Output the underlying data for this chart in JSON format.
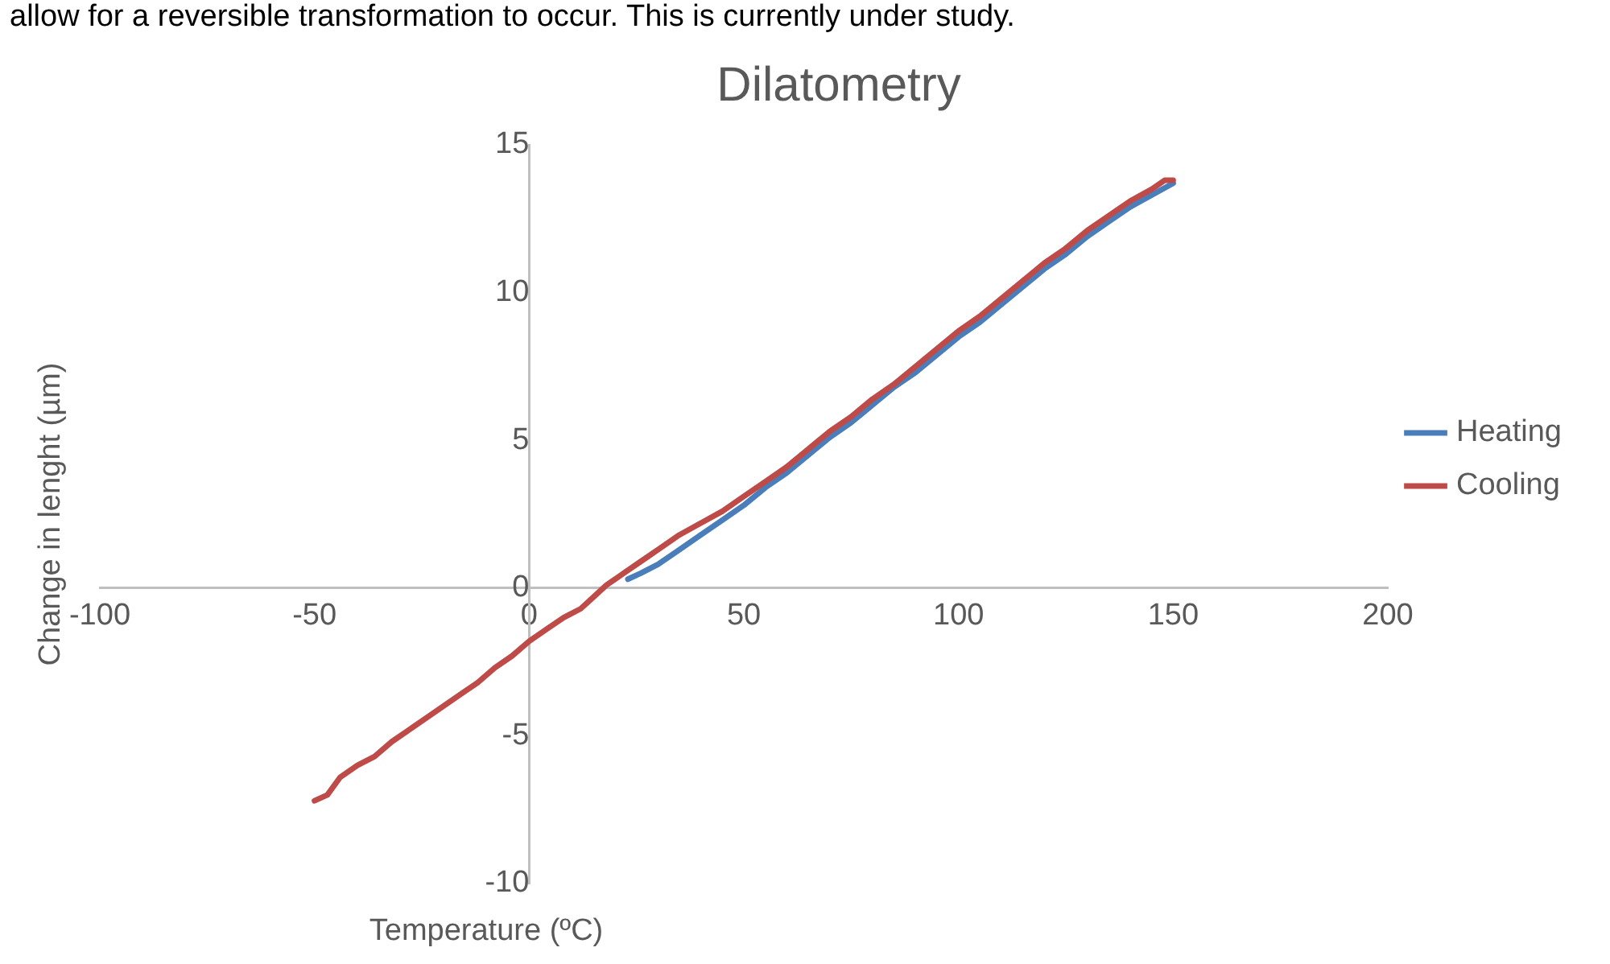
{
  "chart_data": {
    "type": "line",
    "title": "Dilatometry",
    "xlabel": "Temperature (ºC)",
    "ylabel": "Change in lenght (µm)",
    "annotations": [
      "allow for a reversible transformation to occur. This is currently under study."
    ],
    "xlim": [
      -100,
      200
    ],
    "xticks": [
      -100,
      -50,
      0,
      50,
      100,
      150,
      200
    ],
    "ylim": [
      -10,
      15
    ],
    "yticks": [
      -10,
      -5,
      0,
      5,
      10,
      15
    ],
    "grid": false,
    "legend": "right",
    "marker": "none",
    "line_style": "solid",
    "series": [
      {
        "name": "Heating",
        "color": "#4a7ebb",
        "x": [
          23,
          26,
          30,
          35,
          40,
          45,
          50,
          55,
          60,
          65,
          70,
          75,
          80,
          85,
          90,
          95,
          100,
          105,
          110,
          115,
          120,
          125,
          130,
          135,
          140,
          145,
          150
        ],
        "values": [
          0.3,
          0.5,
          0.8,
          1.3,
          1.8,
          2.3,
          2.8,
          3.4,
          3.9,
          4.5,
          5.1,
          5.6,
          6.2,
          6.8,
          7.3,
          7.9,
          8.5,
          9.0,
          9.6,
          10.2,
          10.8,
          11.3,
          11.9,
          12.4,
          12.9,
          13.3,
          13.7
        ]
      },
      {
        "name": "Cooling",
        "color": "#be4b48",
        "x": [
          -50,
          -47,
          -44,
          -40,
          -36,
          -32,
          -28,
          -24,
          -20,
          -16,
          -12,
          -8,
          -4,
          0,
          4,
          8,
          12,
          15,
          18,
          22,
          26,
          30,
          35,
          40,
          45,
          50,
          55,
          60,
          65,
          70,
          75,
          80,
          85,
          90,
          95,
          100,
          105,
          110,
          115,
          120,
          125,
          130,
          135,
          140,
          145,
          148,
          150
        ],
        "values": [
          -7.2,
          -7.0,
          -6.4,
          -6.0,
          -5.7,
          -5.2,
          -4.8,
          -4.4,
          -4.0,
          -3.6,
          -3.2,
          -2.7,
          -2.3,
          -1.8,
          -1.4,
          -1.0,
          -0.7,
          -0.3,
          0.1,
          0.5,
          0.9,
          1.3,
          1.8,
          2.2,
          2.6,
          3.1,
          3.6,
          4.1,
          4.7,
          5.3,
          5.8,
          6.4,
          6.9,
          7.5,
          8.1,
          8.7,
          9.2,
          9.8,
          10.4,
          11.0,
          11.5,
          12.1,
          12.6,
          13.1,
          13.5,
          13.8,
          13.8
        ]
      }
    ]
  }
}
